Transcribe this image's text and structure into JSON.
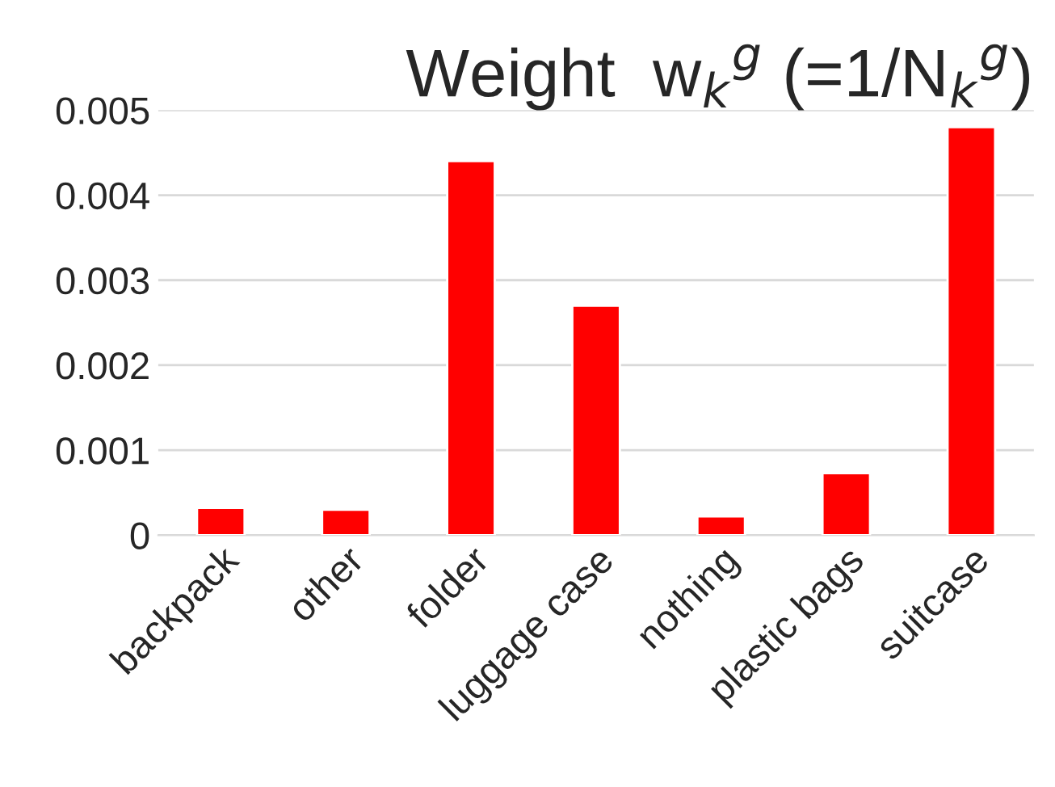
{
  "chart_data": {
    "type": "bar",
    "title": "Weight  w$_{k}$$^{g}$ (=1/N$_{k}$$^{g}$)",
    "categories": [
      "backpack",
      "other",
      "folder",
      "luggage case",
      "nothing",
      "plastic bags",
      "suitcase"
    ],
    "values": [
      0.00032,
      0.0003,
      0.0044,
      0.0027,
      0.00022,
      0.00073,
      0.0048
    ],
    "color": "#ff0000",
    "ylim": [
      0,
      0.005
    ],
    "yticks": [
      0,
      0.001,
      0.002,
      0.003,
      0.004,
      0.005
    ],
    "grid": "y"
  }
}
